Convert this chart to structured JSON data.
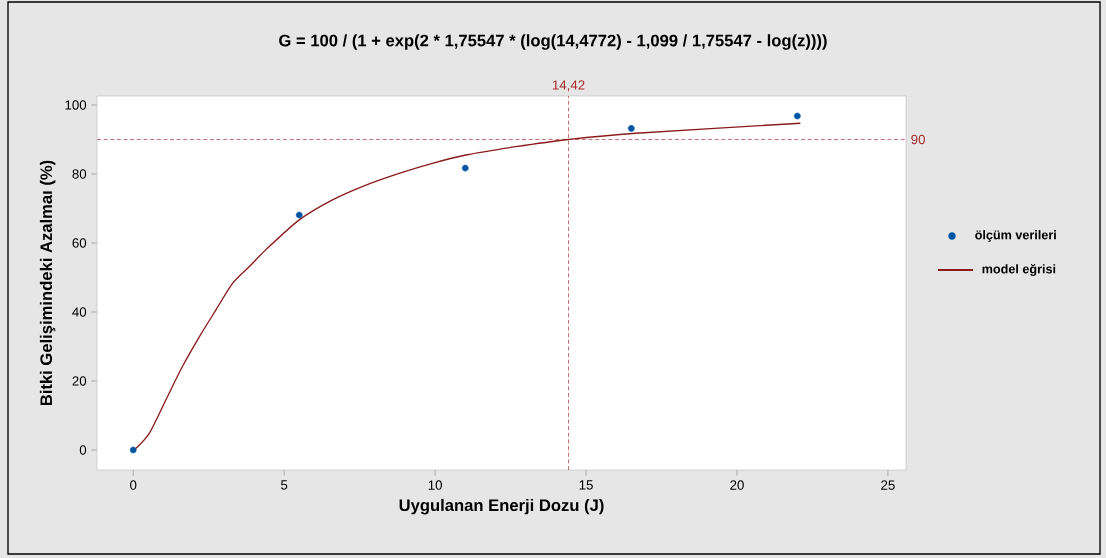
{
  "chart_data": {
    "type": "line",
    "title": "G = 100 / (1 + exp(2 * 1,75547 * (log(14,4772) - 1,099 / 1,75547 - log(z))))",
    "xlabel": "Uygulanan Enerji Dozu (J)",
    "ylabel": "Bitki Gelişimindeki Azalmaı (%)",
    "xlim": [
      -1.2,
      25.6
    ],
    "ylim": [
      -5.8,
      102.6
    ],
    "xticks": [
      0,
      5,
      10,
      15,
      20,
      25
    ],
    "yticks": [
      0,
      20,
      40,
      60,
      80,
      100
    ],
    "legend": "right",
    "series": [
      {
        "name": "ölçüm verileri",
        "type": "scatter",
        "marker": "circle",
        "color": "#0055a5",
        "x": [
          0,
          5.5,
          11,
          16.5,
          22
        ],
        "values": [
          0,
          68.1,
          81.7,
          93.2,
          96.8
        ]
      },
      {
        "name": "model eğrisi",
        "marker": "none",
        "line_style": "solid",
        "color": "#8b1a1a",
        "x": [
          0.03,
          0.53,
          1.08,
          1.63,
          2.19,
          2.74,
          3.29,
          3.84,
          4.39,
          5.5,
          6.6,
          7.71,
          8.81,
          9.91,
          11.02,
          12.67,
          14.42,
          16.65,
          22.1
        ],
        "values": [
          0,
          4.8,
          14.5,
          24.2,
          32.8,
          40.6,
          48.3,
          53.1,
          58.0,
          66.7,
          72.5,
          76.8,
          80.2,
          83.1,
          85.5,
          87.9,
          90,
          91.8,
          94.7
        ]
      }
    ],
    "ref_lines": [
      {
        "axis": "x",
        "value": 14.42,
        "label": "14,42",
        "color": "#a52a2a",
        "line_style": "dashed"
      },
      {
        "axis": "y",
        "value": 90,
        "label": "90",
        "color": "#a52a2a",
        "line_style": "dashed"
      }
    ]
  }
}
